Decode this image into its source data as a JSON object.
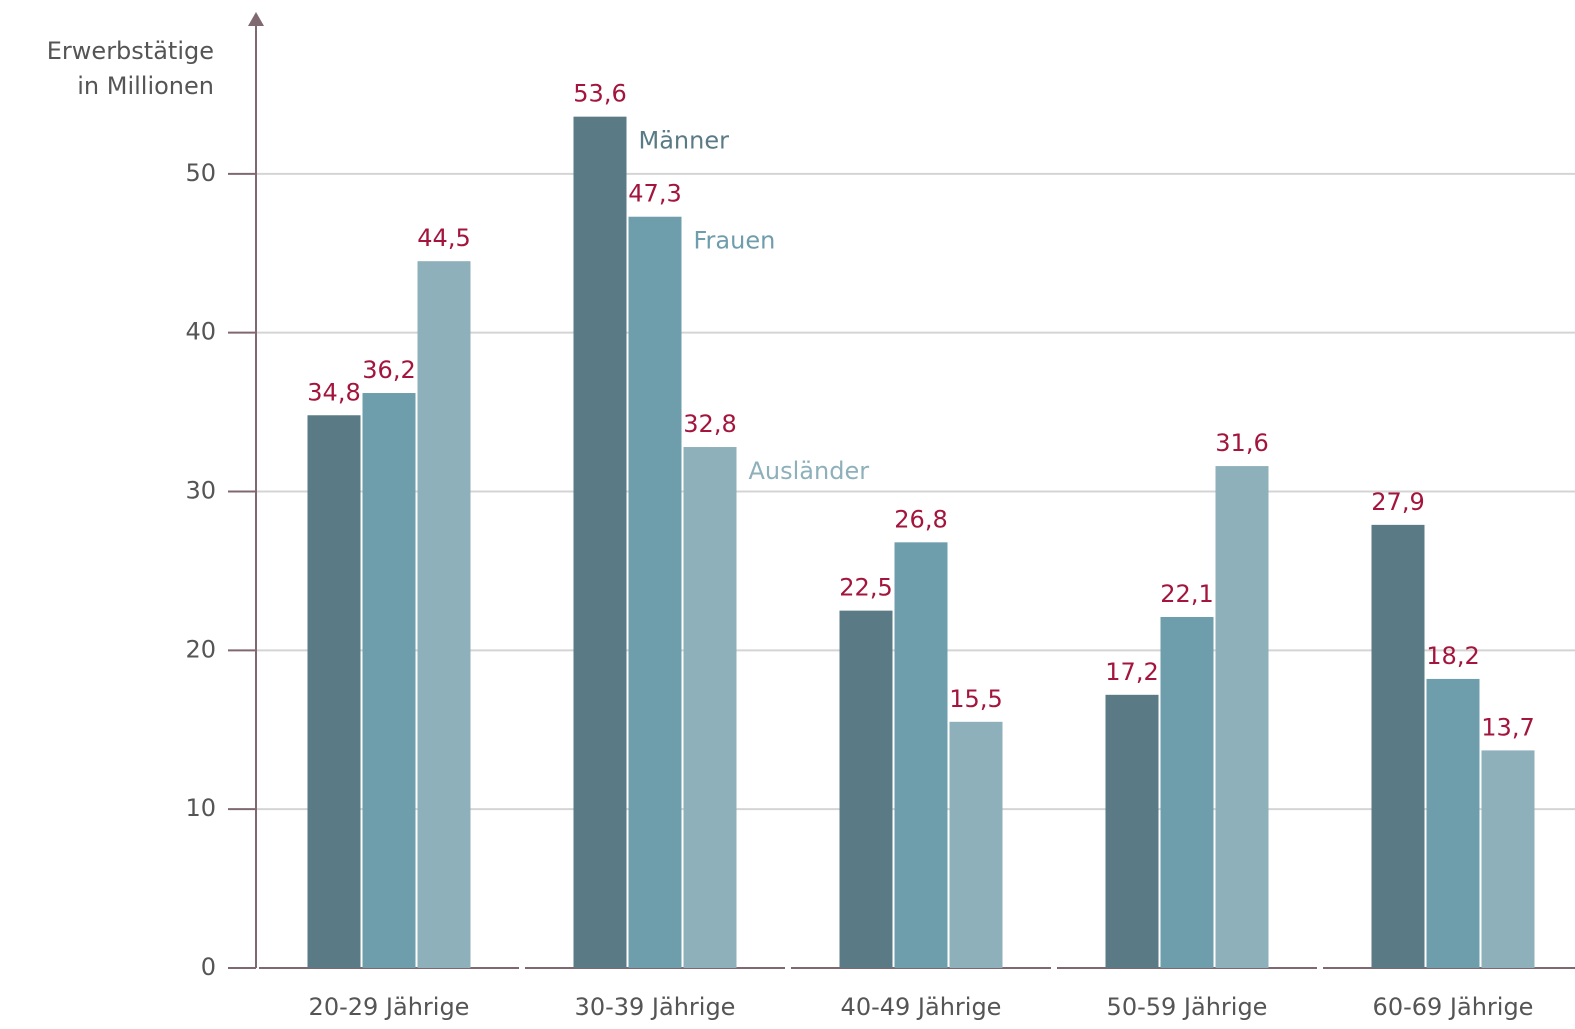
{
  "chart_data": {
    "type": "bar",
    "y_label": [
      "Erwerbstätige",
      "in Millionen"
    ],
    "categories": [
      "20-29 Jährige",
      "30-39 Jährige",
      "40-49 Jährige",
      "50-59 Jährige",
      "60-69 Jährige"
    ],
    "series": [
      {
        "name": "Männer",
        "color": "#5a7b85",
        "values": [
          34.8,
          53.6,
          22.5,
          17.2,
          27.9
        ],
        "value_labels": [
          "34,8",
          "53,6",
          "22,5",
          "17,2",
          "27,9"
        ]
      },
      {
        "name": "Frauen",
        "color": "#6e9dab",
        "values": [
          36.2,
          47.3,
          26.8,
          22.1,
          18.2
        ],
        "value_labels": [
          "36,2",
          "47,3",
          "26,8",
          "22,1",
          "18,2"
        ]
      },
      {
        "name": "Ausländer",
        "color": "#8db0ba",
        "values": [
          44.5,
          32.8,
          15.5,
          31.6,
          13.7
        ],
        "value_labels": [
          "44,5",
          "32,8",
          "15,5",
          "31,6",
          "13,7"
        ]
      }
    ],
    "ylim": [
      0,
      60
    ],
    "yticks": [
      0,
      10,
      20,
      30,
      40,
      50
    ],
    "grid": true,
    "label_color": "#a3153d"
  }
}
